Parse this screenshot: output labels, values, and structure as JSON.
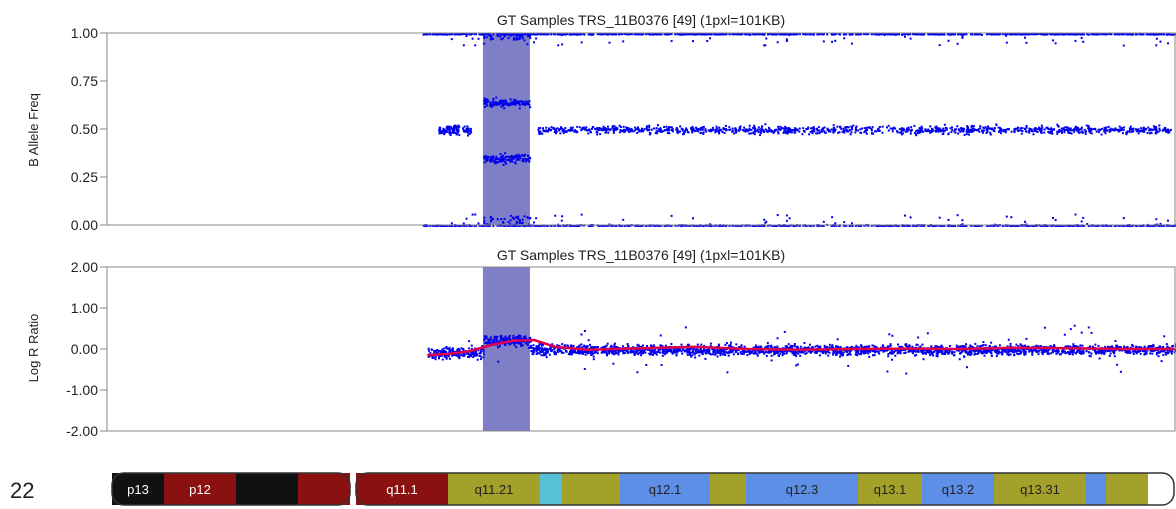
{
  "chromosome": "22",
  "chart_data": [
    {
      "type": "scatter",
      "title": "GT Samples TRS_11B0376 [49]  (1pxl=101KB)",
      "ylabel": "B Allele Freq",
      "ylim": [
        0,
        1
      ],
      "yticks": [
        "1.00",
        "0.75",
        "0.50",
        "0.25",
        "0.00"
      ],
      "ytick_values": [
        1.0,
        0.75,
        0.5,
        0.25,
        0.0
      ],
      "grid": false,
      "point_color": "#0000ee",
      "highlight_color": "#7f7fc8",
      "series": [
        {
          "values": [
            1.0,
            0.5,
            0.0
          ],
          "x_range": [
            0.3,
            1.0
          ]
        },
        {
          "values": [
            0.65,
            0.35
          ],
          "x_range": [
            0.352,
            0.396
          ]
        }
      ]
    },
    {
      "type": "scatter",
      "title": "GT Samples TRS_11B0376 [49]  (1pxl=101KB)",
      "ylabel": "Log R Ratio",
      "ylim": [
        -2,
        2
      ],
      "yticks": [
        "2.00",
        "1.00",
        "0.00",
        "-1.00",
        "-2.00"
      ],
      "ytick_values": [
        2.0,
        1.0,
        0.0,
        -1.0,
        -2.0
      ],
      "grid": false,
      "point_color": "#0000ee",
      "line_color": "#e0004a",
      "highlight_color": "#7f7fc8",
      "smoothed_line": [
        [
          0.3,
          -0.15
        ],
        [
          0.32,
          -0.12
        ],
        [
          0.34,
          -0.05
        ],
        [
          0.36,
          0.1
        ],
        [
          0.38,
          0.2
        ],
        [
          0.4,
          0.22
        ],
        [
          0.42,
          0.05
        ],
        [
          0.45,
          -0.02
        ],
        [
          0.5,
          0.02
        ],
        [
          0.55,
          0.05
        ],
        [
          0.6,
          0.0
        ],
        [
          0.65,
          -0.02
        ],
        [
          0.7,
          0.0
        ],
        [
          0.75,
          0.01
        ],
        [
          0.8,
          0.0
        ],
        [
          0.85,
          0.03
        ],
        [
          0.9,
          0.02
        ],
        [
          0.95,
          0.0
        ],
        [
          1.0,
          0.0
        ]
      ]
    }
  ],
  "ideogram": {
    "bands": [
      {
        "label": "p13",
        "color": "#111111"
      },
      {
        "label": "p12",
        "color": "#8b1010"
      },
      {
        "label": "",
        "color": "#111111"
      },
      {
        "label": "",
        "color": "#8b1010"
      },
      {
        "label": "q11.1",
        "color": "#8b1010"
      },
      {
        "label": "q11.21",
        "color": "#a3a12a"
      },
      {
        "label": "",
        "color": "#56c2d6"
      },
      {
        "label": "",
        "color": "#a3a12a"
      },
      {
        "label": "q12.1",
        "color": "#5e8fe6"
      },
      {
        "label": "",
        "color": "#a3a12a"
      },
      {
        "label": "q12.3",
        "color": "#5e8fe6"
      },
      {
        "label": "q13.1",
        "color": "#a3a12a"
      },
      {
        "label": "q13.2",
        "color": "#5e8fe6"
      },
      {
        "label": "q13.31",
        "color": "#a3a12a"
      },
      {
        "label": "",
        "color": "#5e8fe6"
      },
      {
        "label": "",
        "color": "#a3a12a"
      }
    ]
  }
}
